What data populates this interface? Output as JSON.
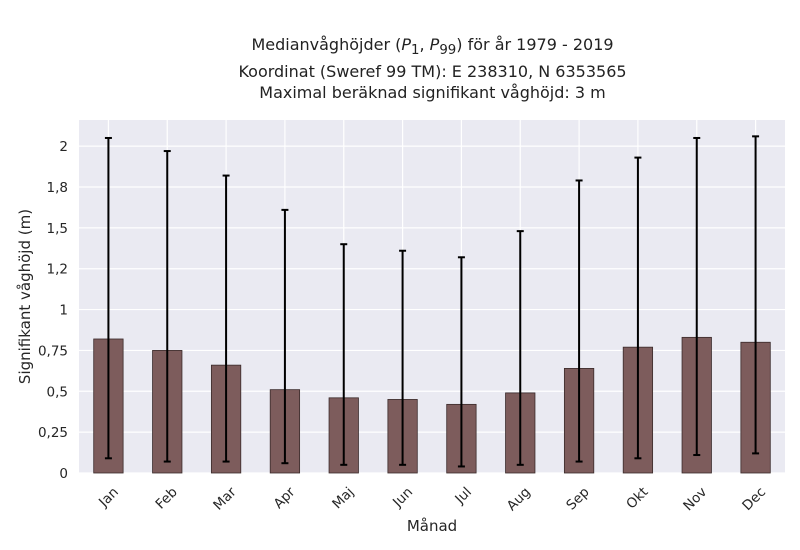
{
  "chart_data": {
    "type": "bar",
    "title": [
      "Medianvåghöjder (P1, P99) för år 1979 - 2019",
      "Koordinat (Sweref 99 TM): E 238310, N 6353565",
      "Maximal beräknad signifikant våghöjd: 3 m"
    ],
    "title_math": {
      "prefix": "Medianvåghöjder (",
      "p1_base": "P",
      "p1_sub": "1",
      "sep": ", ",
      "p99_base": "P",
      "p99_sub": "99",
      "suffix": ") för år 1979 - 2019"
    },
    "xlabel": "Månad",
    "ylabel": "Signifikant våghöjd (m)",
    "categories": [
      "Jan",
      "Feb",
      "Mar",
      "Apr",
      "Maj",
      "Jun",
      "Jul",
      "Aug",
      "Sep",
      "Okt",
      "Nov",
      "Dec"
    ],
    "values": [
      0.82,
      0.75,
      0.66,
      0.51,
      0.46,
      0.45,
      0.42,
      0.49,
      0.64,
      0.77,
      0.83,
      0.8
    ],
    "p1": [
      0.09,
      0.07,
      0.07,
      0.06,
      0.05,
      0.05,
      0.04,
      0.05,
      0.07,
      0.09,
      0.11,
      0.12
    ],
    "p99": [
      2.05,
      1.97,
      1.82,
      1.61,
      1.4,
      1.36,
      1.32,
      1.48,
      1.79,
      1.93,
      2.05,
      2.06
    ],
    "yticks": [
      0,
      0.25,
      0.5,
      0.75,
      1,
      1.25,
      1.5,
      1.75,
      2
    ],
    "ytick_labels": [
      "0",
      "0,25",
      "0,5",
      "0,75",
      "1",
      "1,2",
      "1,5",
      "1,8",
      "2"
    ],
    "ylim": [
      0,
      2.16
    ],
    "grid": true,
    "colors": {
      "bar": "#7d5c5c",
      "bar_edge": "#3a2a2a",
      "error": "#000000",
      "plot_bg": "#eaeaf2",
      "grid": "#ffffff"
    }
  }
}
